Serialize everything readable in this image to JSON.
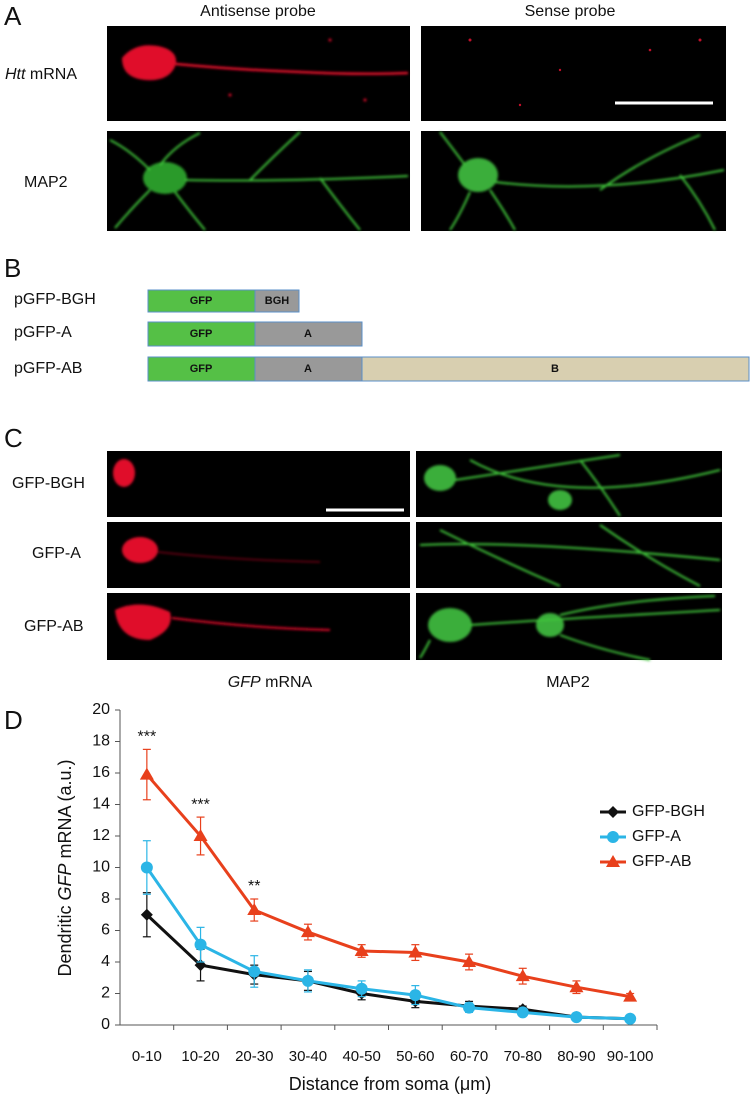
{
  "panel_a": {
    "label": "A",
    "columns": [
      "Antisense probe",
      "Sense probe"
    ],
    "rows": [
      {
        "italic": "Htt",
        "text": "mRNA"
      },
      {
        "text": "MAP2"
      }
    ]
  },
  "panel_b": {
    "label": "B",
    "constructs": [
      {
        "name": "pGFP-BGH",
        "segments": [
          "GFP",
          "BGH"
        ]
      },
      {
        "name": "pGFP-A",
        "segments": [
          "GFP",
          "A"
        ]
      },
      {
        "name": "pGFP-AB",
        "segments": [
          "GFP",
          "A",
          "B"
        ]
      }
    ]
  },
  "panel_c": {
    "label": "C",
    "rows": [
      "GFP-BGH",
      "GFP-A",
      "GFP-AB"
    ],
    "columns": [
      {
        "italic": "GFP",
        "text": "mRNA"
      },
      {
        "text": "MAP2"
      }
    ]
  },
  "chart_data": {
    "type": "line",
    "label": "D",
    "ylabel": {
      "before": "Dendritic",
      "italic": "GFP",
      "after": "mRNA (a.u.)"
    },
    "xlabel": "Distance from soma (μm)",
    "categories": [
      "0-10",
      "10-20",
      "20-30",
      "30-40",
      "40-50",
      "50-60",
      "60-70",
      "70-80",
      "80-90",
      "90-100"
    ],
    "ylim": [
      0,
      20
    ],
    "yticks": [
      0,
      2,
      4,
      6,
      8,
      10,
      12,
      14,
      16,
      18,
      20
    ],
    "series": [
      {
        "name": "GFP-BGH",
        "color": "#111111",
        "marker": "diamond",
        "values": [
          7.0,
          3.8,
          3.2,
          2.8,
          2.0,
          1.5,
          1.2,
          1.0,
          0.5,
          0.4
        ],
        "errors": [
          1.4,
          1.0,
          0.6,
          0.6,
          0.4,
          0.4,
          0.3,
          0.2,
          0.1,
          0.1
        ]
      },
      {
        "name": "GFP-A",
        "color": "#2bb5e6",
        "marker": "circle",
        "values": [
          10.0,
          5.1,
          3.4,
          2.8,
          2.3,
          1.9,
          1.1,
          0.8,
          0.5,
          0.4
        ],
        "errors": [
          1.7,
          1.1,
          1.0,
          0.7,
          0.5,
          0.6,
          0.3,
          0.2,
          0.1,
          0.1
        ]
      },
      {
        "name": "GFP-AB",
        "color": "#e8401c",
        "marker": "triangle",
        "values": [
          15.9,
          12.0,
          7.3,
          5.9,
          4.7,
          4.6,
          4.0,
          3.1,
          2.4,
          1.8
        ],
        "errors": [
          1.6,
          1.2,
          0.7,
          0.5,
          0.4,
          0.5,
          0.5,
          0.5,
          0.4,
          0.2
        ]
      }
    ],
    "annotations": [
      {
        "text": "***",
        "category": "0-10"
      },
      {
        "text": "***",
        "category": "10-20"
      },
      {
        "text": "**",
        "category": "20-30"
      }
    ],
    "legend": "right"
  }
}
